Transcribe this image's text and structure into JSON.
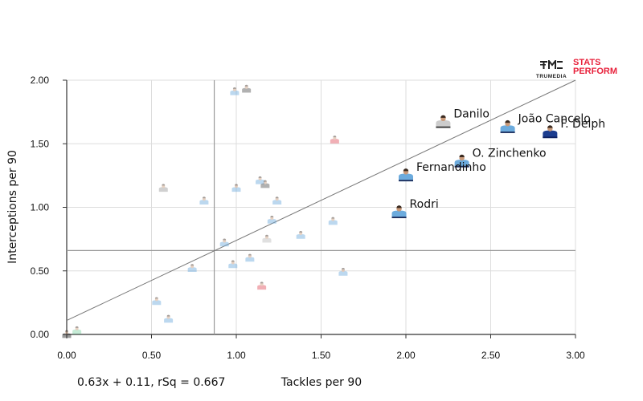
{
  "logos": {
    "trumedia": "TRUMEDIA",
    "stats": "STATS",
    "perform": "PERFORM"
  },
  "chart_data": {
    "type": "scatter",
    "xlabel": "Tackles per 90",
    "ylabel": "Interceptions per 90",
    "xlim": [
      0,
      3
    ],
    "ylim": [
      0,
      2
    ],
    "xticks": [
      "0.00",
      "0.50",
      "1.00",
      "1.50",
      "2.00",
      "2.50",
      "3.00"
    ],
    "yticks": [
      "0.00",
      "0.50",
      "1.00",
      "1.50",
      "2.00"
    ],
    "grid": true,
    "equation": "0.63x + 0.11, rSq = 0.667",
    "regression": {
      "slope": 0.63,
      "intercept": 0.11
    },
    "mean_lines": {
      "x": 0.87,
      "y": 0.66
    },
    "labeled_points": [
      {
        "name": "Danilo",
        "x": 2.22,
        "y": 1.67,
        "kit": "#cccccc",
        "kit2": "#333333"
      },
      {
        "name": "João Cancelo",
        "x": 2.6,
        "y": 1.63,
        "kit": "#6cabdd",
        "kit2": "#1c2c5b"
      },
      {
        "name": "F. Delph",
        "x": 2.85,
        "y": 1.59,
        "kit": "#1c3d8f",
        "kit2": "#0f2160"
      },
      {
        "name": "O. Zinchenko",
        "x": 2.33,
        "y": 1.36,
        "kit": "#6cabdd",
        "kit2": "#1c2c5b"
      },
      {
        "name": "Fernandinho",
        "x": 2.0,
        "y": 1.25,
        "kit": "#6cabdd",
        "kit2": "#1c2c5b"
      },
      {
        "name": "Rodri",
        "x": 1.96,
        "y": 0.96,
        "kit": "#6cabdd",
        "kit2": "#1c2c5b"
      }
    ],
    "faded_points": [
      {
        "x": 0.0,
        "y": 0.0,
        "kit": "#222222"
      },
      {
        "x": 0.06,
        "y": 0.03,
        "kit": "#7fd3a6"
      },
      {
        "x": 0.53,
        "y": 0.26,
        "kit": "#6cabdd"
      },
      {
        "x": 0.6,
        "y": 0.12,
        "kit": "#6cabdd"
      },
      {
        "x": 0.57,
        "y": 1.15,
        "kit": "#999999"
      },
      {
        "x": 0.74,
        "y": 0.52,
        "kit": "#6cabdd"
      },
      {
        "x": 0.81,
        "y": 1.05,
        "kit": "#6cabdd"
      },
      {
        "x": 0.93,
        "y": 0.72,
        "kit": "#6cabdd"
      },
      {
        "x": 0.98,
        "y": 0.55,
        "kit": "#6cabdd"
      },
      {
        "x": 0.99,
        "y": 1.91,
        "kit": "#6cabdd"
      },
      {
        "x": 1.06,
        "y": 1.93,
        "kit": "#555555"
      },
      {
        "x": 1.0,
        "y": 1.15,
        "kit": "#6cabdd"
      },
      {
        "x": 1.08,
        "y": 0.6,
        "kit": "#6cabdd"
      },
      {
        "x": 1.14,
        "y": 1.21,
        "kit": "#6cabdd"
      },
      {
        "x": 1.17,
        "y": 1.18,
        "kit": "#555555"
      },
      {
        "x": 1.15,
        "y": 0.38,
        "kit": "#e2505c"
      },
      {
        "x": 1.18,
        "y": 0.75,
        "kit": "#bbbbbb"
      },
      {
        "x": 1.21,
        "y": 0.9,
        "kit": "#6cabdd"
      },
      {
        "x": 1.24,
        "y": 1.05,
        "kit": "#6cabdd"
      },
      {
        "x": 1.38,
        "y": 0.78,
        "kit": "#6cabdd"
      },
      {
        "x": 1.57,
        "y": 0.89,
        "kit": "#6cabdd"
      },
      {
        "x": 1.58,
        "y": 1.53,
        "kit": "#e2505c"
      },
      {
        "x": 1.63,
        "y": 0.49,
        "kit": "#6cabdd"
      }
    ]
  }
}
